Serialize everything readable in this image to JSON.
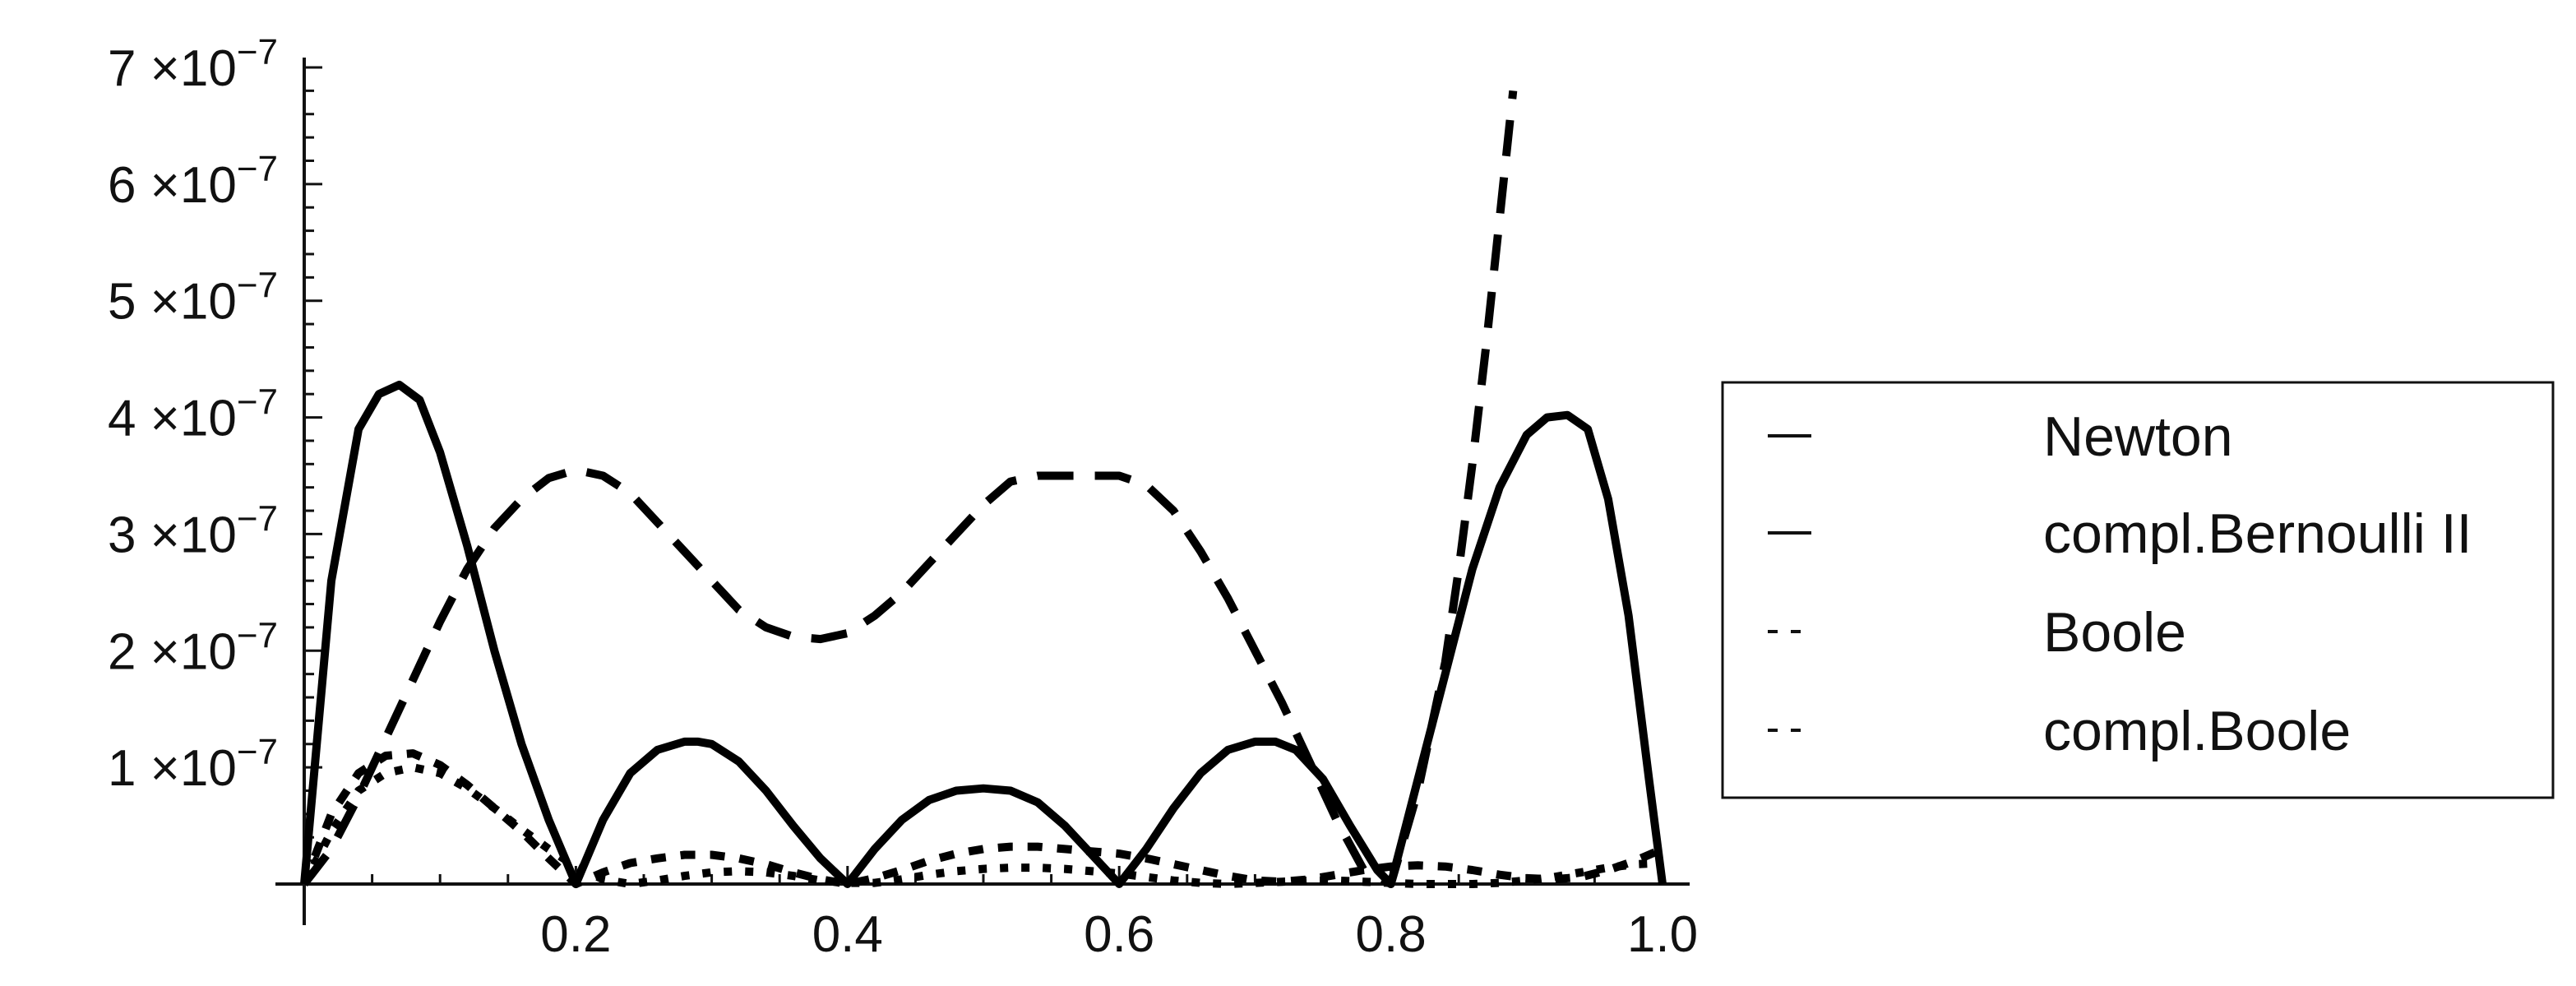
{
  "chart_data": {
    "type": "line",
    "title": "",
    "xlabel": "",
    "ylabel": "",
    "xlim": [
      0,
      1.0
    ],
    "ylim": [
      0,
      7e-07
    ],
    "grid": false,
    "legend_position": "right",
    "x_ticks": [
      {
        "value": 0.2,
        "label": "0.2"
      },
      {
        "value": 0.4,
        "label": "0.4"
      },
      {
        "value": 0.6,
        "label": "0.6"
      },
      {
        "value": 0.8,
        "label": "0.8"
      },
      {
        "value": 1.0,
        "label": "1.0"
      }
    ],
    "y_ticks": [
      {
        "value": 1e-07,
        "mantissa": "1",
        "times": "×10",
        "exp": "−7"
      },
      {
        "value": 2e-07,
        "mantissa": "2",
        "times": "×10",
        "exp": "−7"
      },
      {
        "value": 3e-07,
        "mantissa": "3",
        "times": "×10",
        "exp": "−7"
      },
      {
        "value": 4e-07,
        "mantissa": "4",
        "times": "×10",
        "exp": "−7"
      },
      {
        "value": 5e-07,
        "mantissa": "5",
        "times": "×10",
        "exp": "−7"
      },
      {
        "value": 6e-07,
        "mantissa": "6",
        "times": "×10",
        "exp": "−7"
      },
      {
        "value": 7e-07,
        "mantissa": "7",
        "times": "×10",
        "exp": "−7"
      }
    ],
    "series": [
      {
        "name": "Newton",
        "style": "solid",
        "x": [
          0,
          0.02,
          0.04,
          0.055,
          0.07,
          0.085,
          0.1,
          0.12,
          0.14,
          0.16,
          0.18,
          0.2,
          0.22,
          0.24,
          0.26,
          0.28,
          0.29,
          0.3,
          0.32,
          0.34,
          0.36,
          0.38,
          0.4,
          0.42,
          0.44,
          0.46,
          0.48,
          0.5,
          0.52,
          0.54,
          0.56,
          0.58,
          0.6,
          0.62,
          0.64,
          0.66,
          0.68,
          0.7,
          0.715,
          0.73,
          0.75,
          0.77,
          0.79,
          0.8,
          0.82,
          0.84,
          0.86,
          0.88,
          0.9,
          0.915,
          0.93,
          0.945,
          0.96,
          0.975,
          0.99,
          1.0
        ],
        "y": [
          0,
          2.6e-07,
          3.9e-07,
          4.2e-07,
          4.28e-07,
          4.15e-07,
          3.7e-07,
          2.9e-07,
          2e-07,
          1.2e-07,
          5.5e-08,
          0,
          5.5e-08,
          9.5e-08,
          1.15e-07,
          1.22e-07,
          1.22e-07,
          1.2e-07,
          1.05e-07,
          8e-08,
          5e-08,
          2.2e-08,
          0,
          3e-08,
          5.5e-08,
          7.2e-08,
          8e-08,
          8.2e-08,
          8e-08,
          7e-08,
          5e-08,
          2.5e-08,
          0,
          3e-08,
          6.5e-08,
          9.5e-08,
          1.15e-07,
          1.22e-07,
          1.22e-07,
          1.15e-07,
          9e-08,
          5e-08,
          1.2e-08,
          0,
          9e-08,
          1.8e-07,
          2.7e-07,
          3.4e-07,
          3.85e-07,
          4e-07,
          4.02e-07,
          3.9e-07,
          3.3e-07,
          2.3e-07,
          9e-08,
          0
        ]
      },
      {
        "name": "compl.Bernoulli II",
        "style": "dashed",
        "x": [
          0,
          0.02,
          0.04,
          0.06,
          0.08,
          0.1,
          0.12,
          0.14,
          0.16,
          0.18,
          0.2,
          0.22,
          0.24,
          0.26,
          0.28,
          0.3,
          0.32,
          0.34,
          0.36,
          0.38,
          0.4,
          0.42,
          0.44,
          0.46,
          0.48,
          0.5,
          0.52,
          0.54,
          0.56,
          0.58,
          0.6,
          0.62,
          0.64,
          0.66,
          0.68,
          0.7,
          0.72,
          0.74,
          0.76,
          0.78,
          0.8,
          0.82,
          0.84,
          0.85,
          0.86,
          0.87,
          0.88,
          0.89
        ],
        "y": [
          0,
          3e-08,
          7.5e-08,
          1.25e-07,
          1.75e-07,
          2.25e-07,
          2.7e-07,
          3.05e-07,
          3.3e-07,
          3.48e-07,
          3.55e-07,
          3.5e-07,
          3.35e-07,
          3.1e-07,
          2.85e-07,
          2.6e-07,
          2.35e-07,
          2.2e-07,
          2.12e-07,
          2.1e-07,
          2.15e-07,
          2.3e-07,
          2.5e-07,
          2.75e-07,
          3e-07,
          3.25e-07,
          3.45e-07,
          3.5e-07,
          3.5e-07,
          3.5e-07,
          3.5e-07,
          3.42e-07,
          3.2e-07,
          2.85e-07,
          2.45e-07,
          2e-07,
          1.55e-07,
          1.05e-07,
          5.5e-08,
          1.2e-08,
          0,
          8e-08,
          1.9e-07,
          2.7e-07,
          3.6e-07,
          4.6e-07,
          5.7e-07,
          6.8e-07
        ]
      },
      {
        "name": "Boole",
        "style": "short-dash",
        "x": [
          0,
          0.02,
          0.04,
          0.06,
          0.08,
          0.1,
          0.12,
          0.14,
          0.16,
          0.18,
          0.2,
          0.22,
          0.24,
          0.26,
          0.28,
          0.3,
          0.32,
          0.34,
          0.36,
          0.38,
          0.4,
          0.42,
          0.44,
          0.46,
          0.48,
          0.5,
          0.52,
          0.54,
          0.56,
          0.58,
          0.6,
          0.62,
          0.64,
          0.66,
          0.68,
          0.7,
          0.72,
          0.74,
          0.76,
          0.78,
          0.8,
          0.82,
          0.84,
          0.86,
          0.88,
          0.9,
          0.92,
          0.94,
          0.96,
          0.98,
          1.0
        ],
        "y": [
          0,
          6e-08,
          9.5e-08,
          1.1e-07,
          1.12e-07,
          1.02e-07,
          8.5e-08,
          6.5e-08,
          4.5e-08,
          2.2e-08,
          0,
          1e-08,
          1.8e-08,
          2.2e-08,
          2.5e-08,
          2.5e-08,
          2.2e-08,
          1.7e-08,
          1e-08,
          4e-09,
          0,
          5e-09,
          1.2e-08,
          2e-08,
          2.6e-08,
          3e-08,
          3.2e-08,
          3.2e-08,
          3e-08,
          2.8e-08,
          2.6e-08,
          2.2e-08,
          1.7e-08,
          1.2e-08,
          7e-09,
          3e-09,
          2e-09,
          4e-09,
          8e-09,
          1.2e-08,
          1.5e-08,
          1.6e-08,
          1.5e-08,
          1.2e-08,
          8e-09,
          5e-09,
          4e-09,
          6e-09,
          1.2e-08,
          2e-08,
          3e-08
        ]
      },
      {
        "name": "compl.Boole",
        "style": "dotted",
        "x": [
          0,
          0.02,
          0.04,
          0.06,
          0.08,
          0.1,
          0.12,
          0.14,
          0.16,
          0.18,
          0.2,
          0.22,
          0.24,
          0.26,
          0.28,
          0.3,
          0.32,
          0.34,
          0.36,
          0.38,
          0.4,
          0.42,
          0.44,
          0.46,
          0.48,
          0.5,
          0.52,
          0.54,
          0.56,
          0.58,
          0.6,
          0.62,
          0.64,
          0.66,
          0.68,
          0.7,
          0.72,
          0.74,
          0.76,
          0.78,
          0.8,
          0.82,
          0.84,
          0.86,
          0.88,
          0.9,
          0.92,
          0.94,
          0.96,
          0.98,
          1.0
        ],
        "y": [
          0,
          4.5e-08,
          8e-08,
          9.5e-08,
          1e-07,
          9.5e-08,
          8.2e-08,
          6.5e-08,
          4.7e-08,
          3e-08,
          1.5e-08,
          4e-09,
          0,
          3e-09,
          7e-09,
          1e-08,
          1.1e-08,
          1e-08,
          7e-09,
          3e-09,
          1e-09,
          1e-09,
          4e-09,
          8e-09,
          1.1e-08,
          1.3e-08,
          1.4e-08,
          1.4e-08,
          1.3e-08,
          1.1e-08,
          9e-09,
          6e-09,
          3e-09,
          1e-09,
          0,
          1e-09,
          2e-09,
          3e-09,
          3e-09,
          2e-09,
          1e-09,
          0,
          0,
          0,
          1e-09,
          3e-09,
          6e-09,
          1e-08,
          1.4e-08,
          1.7e-08,
          1.8e-08
        ]
      }
    ]
  }
}
